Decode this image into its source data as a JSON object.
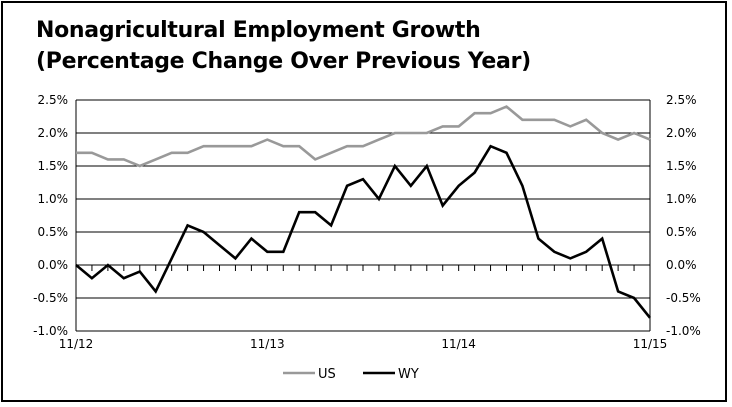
{
  "chart_data": {
    "type": "line",
    "title_lines": [
      "Nonagricultural Employment Growth",
      "(Percentage Change Over Previous Year)"
    ],
    "x_tick_labels": [
      "11/12",
      "11/13",
      "11/14",
      "11/15"
    ],
    "y_tick_labels": [
      "2.5%",
      "2.0%",
      "1.5%",
      "1.0%",
      "0.5%",
      "0.0%",
      "-0.5%",
      "-1.0%"
    ],
    "ylim": [
      -1.0,
      2.5
    ],
    "y_unit": "%",
    "grid": "horizontal",
    "legend_position": "bottom-center",
    "series": [
      {
        "name": "US",
        "color": "#999999",
        "values": [
          1.7,
          1.7,
          1.6,
          1.6,
          1.5,
          1.6,
          1.7,
          1.7,
          1.8,
          1.8,
          1.8,
          1.8,
          1.9,
          1.8,
          1.8,
          1.6,
          1.7,
          1.8,
          1.8,
          1.9,
          2.0,
          2.0,
          2.0,
          2.1,
          2.1,
          2.3,
          2.3,
          2.4,
          2.2,
          2.2,
          2.2,
          2.1,
          2.2,
          2.0,
          1.9,
          2.0,
          1.9
        ]
      },
      {
        "name": "WY",
        "color": "#000000",
        "values": [
          0.0,
          -0.2,
          0.0,
          -0.2,
          -0.1,
          -0.4,
          0.1,
          0.6,
          0.5,
          0.3,
          0.1,
          0.4,
          0.2,
          0.2,
          0.8,
          0.8,
          0.6,
          1.2,
          1.3,
          1.0,
          1.5,
          1.2,
          1.5,
          0.9,
          1.2,
          1.4,
          1.8,
          1.7,
          1.2,
          0.4,
          0.2,
          0.1,
          0.2,
          0.4,
          -0.4,
          -0.5,
          -0.8
        ]
      }
    ]
  }
}
